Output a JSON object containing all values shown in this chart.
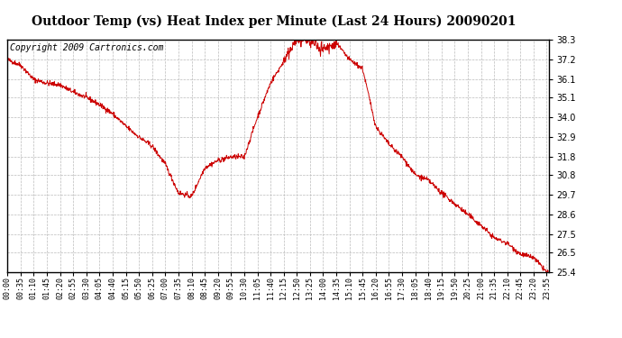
{
  "title": "Outdoor Temp (vs) Heat Index per Minute (Last 24 Hours) 20090201",
  "copyright_text": "Copyright 2009 Cartronics.com",
  "line_color": "#cc0000",
  "background_color": "#ffffff",
  "plot_background_color": "#ffffff",
  "grid_color": "#bbbbbb",
  "ylim_min": 25.4,
  "ylim_max": 38.3,
  "yticks": [
    25.4,
    26.5,
    27.5,
    28.6,
    29.7,
    30.8,
    31.8,
    32.9,
    34.0,
    35.1,
    36.1,
    37.2,
    38.3
  ],
  "x_tick_labels": [
    "00:00",
    "00:35",
    "01:10",
    "01:45",
    "02:20",
    "02:55",
    "03:30",
    "04:05",
    "04:40",
    "05:15",
    "05:50",
    "06:25",
    "07:00",
    "07:35",
    "08:10",
    "08:45",
    "09:20",
    "09:55",
    "10:30",
    "11:05",
    "11:40",
    "12:15",
    "12:50",
    "13:25",
    "14:00",
    "14:35",
    "15:10",
    "15:45",
    "16:20",
    "16:55",
    "17:30",
    "18:05",
    "18:40",
    "19:15",
    "19:50",
    "20:25",
    "21:00",
    "21:35",
    "22:10",
    "22:45",
    "23:20",
    "23:55"
  ],
  "key_points_x": [
    0,
    35,
    70,
    105,
    140,
    175,
    210,
    245,
    280,
    315,
    350,
    385,
    420,
    455,
    490,
    525,
    560,
    595,
    630,
    665,
    700,
    735,
    770,
    805,
    840,
    875,
    910,
    945,
    980,
    1015,
    1050,
    1085,
    1120,
    1155,
    1190,
    1225,
    1260,
    1295,
    1330,
    1365,
    1400,
    1435
  ],
  "key_points_y": [
    37.2,
    36.9,
    36.1,
    35.9,
    35.8,
    35.4,
    35.1,
    34.7,
    34.2,
    33.5,
    32.9,
    32.4,
    31.4,
    29.8,
    29.6,
    31.2,
    31.6,
    31.8,
    31.8,
    34.0,
    35.9,
    37.1,
    38.3,
    38.2,
    37.8,
    38.1,
    37.2,
    36.7,
    33.5,
    32.5,
    31.8,
    30.8,
    30.5,
    29.8,
    29.2,
    28.6,
    28.0,
    27.3,
    27.0,
    26.4,
    26.2,
    25.4
  ],
  "title_fontsize": 10,
  "copyright_fontsize": 7,
  "tick_labelsize": 7,
  "xtick_labelsize": 6
}
